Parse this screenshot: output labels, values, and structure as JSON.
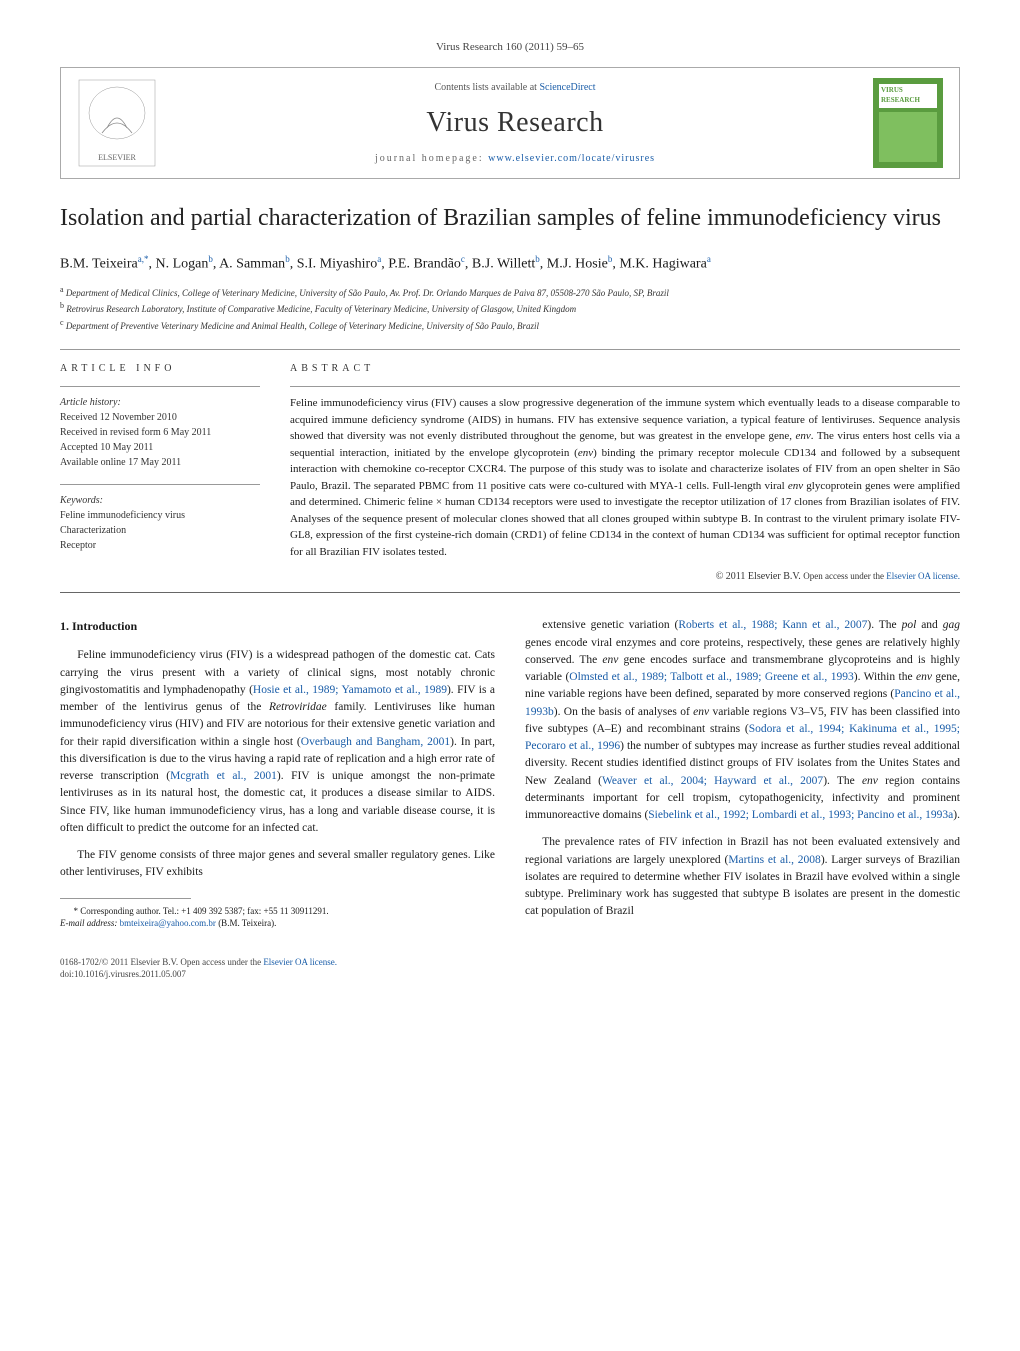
{
  "journal_ref": "Virus Research 160 (2011) 59–65",
  "header": {
    "contents_line_pre": "Contents lists available at ",
    "contents_link": "ScienceDirect",
    "journal_name": "Virus Research",
    "homepage_pre": "journal homepage: ",
    "homepage_link": "www.elsevier.com/locate/virusres",
    "cover_text": "VIRUS RESEARCH"
  },
  "title": "Isolation and partial characterization of Brazilian samples of feline immunodeficiency virus",
  "authors_html": "B.M. Teixeira<sup class='sup'>a,*</sup>, N. Logan<sup class='sup'>b</sup>, A. Samman<sup class='sup'>b</sup>, S.I. Miyashiro<sup class='sup'>a</sup>, P.E. Brandão<sup class='sup'>c</sup>, B.J. Willett<sup class='sup'>b</sup>, M.J. Hosie<sup class='sup'>b</sup>, M.K. Hagiwara<sup class='sup'>a</sup>",
  "affiliations": [
    {
      "sup": "a",
      "text": "Department of Medical Clinics, College of Veterinary Medicine, University of São Paulo, Av. Prof. Dr. Orlando Marques de Paiva 87, 05508-270 São Paulo, SP, Brazil"
    },
    {
      "sup": "b",
      "text": "Retrovirus Research Laboratory, Institute of Comparative Medicine, Faculty of Veterinary Medicine, University of Glasgow, United Kingdom"
    },
    {
      "sup": "c",
      "text": "Department of Preventive Veterinary Medicine and Animal Health, College of Veterinary Medicine, University of São Paulo, Brazil"
    }
  ],
  "article_info": {
    "heading": "ARTICLE INFO",
    "history_label": "Article history:",
    "history": [
      "Received 12 November 2010",
      "Received in revised form 6 May 2011",
      "Accepted 10 May 2011",
      "Available online 17 May 2011"
    ],
    "keywords_label": "Keywords:",
    "keywords": [
      "Feline immunodeficiency virus",
      "Characterization",
      "Receptor"
    ]
  },
  "abstract": {
    "heading": "ABSTRACT",
    "text": "Feline immunodeficiency virus (FIV) causes a slow progressive degeneration of the immune system which eventually leads to a disease comparable to acquired immune deficiency syndrome (AIDS) in humans. FIV has extensive sequence variation, a typical feature of lentiviruses. Sequence analysis showed that diversity was not evenly distributed throughout the genome, but was greatest in the envelope gene, <em>env</em>. The virus enters host cells via a sequential interaction, initiated by the envelope glycoprotein (<em>env</em>) binding the primary receptor molecule CD134 and followed by a subsequent interaction with chemokine co-receptor CXCR4. The purpose of this study was to isolate and characterize isolates of FIV from an open shelter in São Paulo, Brazil. The separated PBMC from 11 positive cats were co-cultured with MYA-1 cells. Full-length viral <em>env</em> glycoprotein genes were amplified and determined. Chimeric feline × human CD134 receptors were used to investigate the receptor utilization of 17 clones from Brazilian isolates of FIV. Analyses of the sequence present of molecular clones showed that all clones grouped within subtype B. In contrast to the virulent primary isolate FIV-GL8, expression of the first cysteine-rich domain (CRD1) of feline CD134 in the context of human CD134 was sufficient for optimal receptor function for all Brazilian FIV isolates tested.",
    "copyright_pre": "© 2011 Elsevier B.V. ",
    "copyright_mid": "Open access under the ",
    "copyright_link": "Elsevier OA license."
  },
  "body": {
    "section_heading": "1.  Introduction",
    "left": [
      "Feline immunodeficiency virus (FIV) is a widespread pathogen of the domestic cat. Cats carrying the virus present with a variety of clinical signs, most notably chronic gingivostomatitis and lymphadenopathy (<a href='#'>Hosie et al., 1989; Yamamoto et al., 1989</a>). FIV is a member of the lentivirus genus of the <em>Retroviridae</em> family. Lentiviruses like human immunodeficiency virus (HIV) and FIV are notorious for their extensive genetic variation and for their rapid diversification within a single host (<a href='#'>Overbaugh and Bangham, 2001</a>). In part, this diversification is due to the virus having a rapid rate of replication and a high error rate of reverse transcription (<a href='#'>Mcgrath et al., 2001</a>). FIV is unique amongst the non-primate lentiviruses as in its natural host, the domestic cat, it produces a disease similar to AIDS. Since FIV, like human immunodeficiency virus, has a long and variable disease course, it is often difficult to predict the outcome for an infected cat.",
      "The FIV genome consists of three major genes and several smaller regulatory genes. Like other lentiviruses, FIV exhibits"
    ],
    "right": [
      "extensive genetic variation (<a href='#'>Roberts et al., 1988; Kann et al., 2007</a>). The <em>pol</em> and <em>gag</em> genes encode viral enzymes and core proteins, respectively, these genes are relatively highly conserved. The <em>env</em> gene encodes surface and transmembrane glycoproteins and is highly variable (<a href='#'>Olmsted et al., 1989; Talbott et al., 1989; Greene et al., 1993</a>). Within the <em>env</em> gene, nine variable regions have been defined, separated by more conserved regions (<a href='#'>Pancino et al., 1993b</a>). On the basis of analyses of <em>env</em> variable regions V3–V5, FIV has been classified into five subtypes (A–E) and recombinant strains (<a href='#'>Sodora et al., 1994; Kakinuma et al., 1995; Pecoraro et al., 1996</a>) the number of subtypes may increase as further studies reveal additional diversity. Recent studies identified distinct groups of FIV isolates from the Unites States and New Zealand (<a href='#'>Weaver et al., 2004; Hayward et al., 2007</a>). The <em>env</em> region contains determinants important for cell tropism, cytopathogenicity, infectivity and prominent immunoreactive domains (<a href='#'>Siebelink et al., 1992; Lombardi et al., 1993; Pancino et al., 1993a</a>).",
      "The prevalence rates of FIV infection in Brazil has not been evaluated extensively and regional variations are largely unexplored (<a href='#'>Martins et al., 2008</a>). Larger surveys of Brazilian isolates are required to determine whether FIV isolates in Brazil have evolved within a single subtype. Preliminary work has suggested that subtype B isolates are present in the domestic cat population of Brazil"
    ]
  },
  "footnote": {
    "corr_label": "* Corresponding author. ",
    "corr_text": "Tel.: +1 409 392 5387; fax: +55 11 30911291.",
    "email_label": "E-mail address: ",
    "email": "bmteixeira@yahoo.com.br",
    "email_suffix": " (B.M. Teixeira)."
  },
  "footer": {
    "issn": "0168-1702/© 2011 Elsevier B.V. ",
    "oa_mid": "Open access under the ",
    "oa_link": "Elsevier OA license.",
    "doi": "doi:10.1016/j.virusres.2011.05.007"
  },
  "colors": {
    "link": "#1a5da8",
    "cover_green": "#5a9c3f",
    "text": "#1a1a1a",
    "rule": "#999999"
  }
}
